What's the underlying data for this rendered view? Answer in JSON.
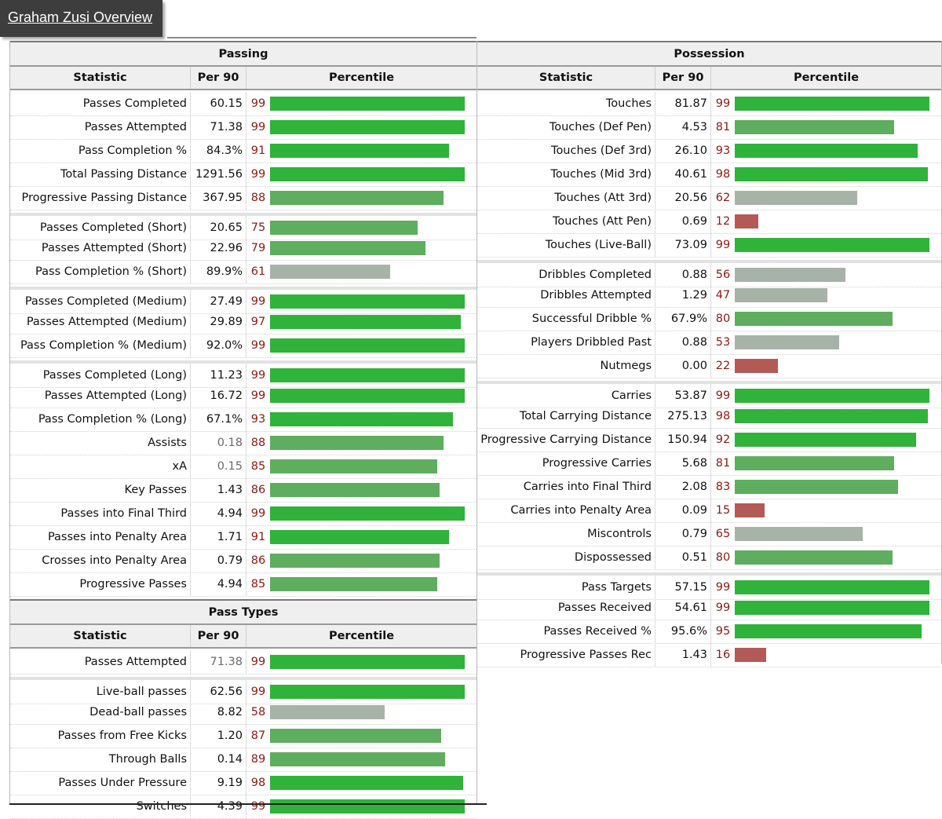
{
  "title": "Graham Zusi Overview",
  "colors": {
    "high": "#2fb33b",
    "mid": "#5fad5f",
    "neutral": "#a8b3a8",
    "low": "#b35a57"
  },
  "columns": {
    "statistic": "Statistic",
    "per90": "Per 90",
    "percentile": "Percentile"
  },
  "passing": {
    "title": "Passing",
    "rows": [
      {
        "name": "Passes Completed",
        "value": "60.15",
        "pct": 99
      },
      {
        "name": "Passes Attempted",
        "value": "71.38",
        "pct": 99
      },
      {
        "name": "Pass Completion %",
        "value": "84.3%",
        "pct": 91
      },
      {
        "name": "Total Passing Distance",
        "value": "1291.56",
        "pct": 99
      },
      {
        "name": "Progressive Passing Distance",
        "value": "367.95",
        "pct": 88
      },
      {
        "name": "Passes Completed (Short)",
        "value": "20.65",
        "pct": 75,
        "group_start": true
      },
      {
        "name": "Passes Attempted (Short)",
        "value": "22.96",
        "pct": 79
      },
      {
        "name": "Pass Completion % (Short)",
        "value": "89.9%",
        "pct": 61
      },
      {
        "name": "Passes Completed (Medium)",
        "value": "27.49",
        "pct": 99,
        "group_start": true
      },
      {
        "name": "Passes Attempted (Medium)",
        "value": "29.89",
        "pct": 97
      },
      {
        "name": "Pass Completion % (Medium)",
        "value": "92.0%",
        "pct": 99
      },
      {
        "name": "Passes Completed (Long)",
        "value": "11.23",
        "pct": 99,
        "group_start": true
      },
      {
        "name": "Passes Attempted (Long)",
        "value": "16.72",
        "pct": 99
      },
      {
        "name": "Pass Completion % (Long)",
        "value": "67.1%",
        "pct": 93
      },
      {
        "name": "Assists",
        "value": "0.18",
        "pct": 88,
        "dim": true
      },
      {
        "name": "xA",
        "value": "0.15",
        "pct": 85,
        "dim": true
      },
      {
        "name": "Key Passes",
        "value": "1.43",
        "pct": 86
      },
      {
        "name": "Passes into Final Third",
        "value": "4.94",
        "pct": 99
      },
      {
        "name": "Passes into Penalty Area",
        "value": "1.71",
        "pct": 91
      },
      {
        "name": "Crosses into Penalty Area",
        "value": "0.79",
        "pct": 86
      },
      {
        "name": "Progressive Passes",
        "value": "4.94",
        "pct": 85
      }
    ]
  },
  "pass_types": {
    "title": "Pass Types",
    "rows": [
      {
        "name": "Passes Attempted",
        "value": "71.38",
        "pct": 99,
        "dim": true
      },
      {
        "name": "Live-ball passes",
        "value": "62.56",
        "pct": 99,
        "group_start": true
      },
      {
        "name": "Dead-ball passes",
        "value": "8.82",
        "pct": 58
      },
      {
        "name": "Passes from Free Kicks",
        "value": "1.20",
        "pct": 87
      },
      {
        "name": "Through Balls",
        "value": "0.14",
        "pct": 89
      },
      {
        "name": "Passes Under Pressure",
        "value": "9.19",
        "pct": 98
      },
      {
        "name": "Switches",
        "value": "4.39",
        "pct": 99
      }
    ]
  },
  "possession": {
    "title": "Possession",
    "rows": [
      {
        "name": "Touches",
        "value": "81.87",
        "pct": 99
      },
      {
        "name": "Touches (Def Pen)",
        "value": "4.53",
        "pct": 81
      },
      {
        "name": "Touches (Def 3rd)",
        "value": "26.10",
        "pct": 93
      },
      {
        "name": "Touches (Mid 3rd)",
        "value": "40.61",
        "pct": 98
      },
      {
        "name": "Touches (Att 3rd)",
        "value": "20.56",
        "pct": 62
      },
      {
        "name": "Touches (Att Pen)",
        "value": "0.69",
        "pct": 12
      },
      {
        "name": "Touches (Live-Ball)",
        "value": "73.09",
        "pct": 99
      },
      {
        "name": "Dribbles Completed",
        "value": "0.88",
        "pct": 56,
        "group_start": true
      },
      {
        "name": "Dribbles Attempted",
        "value": "1.29",
        "pct": 47
      },
      {
        "name": "Successful Dribble %",
        "value": "67.9%",
        "pct": 80
      },
      {
        "name": "Players Dribbled Past",
        "value": "0.88",
        "pct": 53
      },
      {
        "name": "Nutmegs",
        "value": "0.00",
        "pct": 22
      },
      {
        "name": "Carries",
        "value": "53.87",
        "pct": 99,
        "group_start": true
      },
      {
        "name": "Total Carrying Distance",
        "value": "275.13",
        "pct": 98
      },
      {
        "name": "Progressive Carrying Distance",
        "value": "150.94",
        "pct": 92
      },
      {
        "name": "Progressive Carries",
        "value": "5.68",
        "pct": 81
      },
      {
        "name": "Carries into Final Third",
        "value": "2.08",
        "pct": 83
      },
      {
        "name": "Carries into Penalty Area",
        "value": "0.09",
        "pct": 15
      },
      {
        "name": "Miscontrols",
        "value": "0.79",
        "pct": 65
      },
      {
        "name": "Dispossessed",
        "value": "0.51",
        "pct": 80
      },
      {
        "name": "Pass Targets",
        "value": "57.15",
        "pct": 99,
        "group_start": true
      },
      {
        "name": "Passes Received",
        "value": "54.61",
        "pct": 99
      },
      {
        "name": "Passes Received %",
        "value": "95.6%",
        "pct": 95
      },
      {
        "name": "Progressive Passes Rec",
        "value": "1.43",
        "pct": 16
      }
    ]
  }
}
